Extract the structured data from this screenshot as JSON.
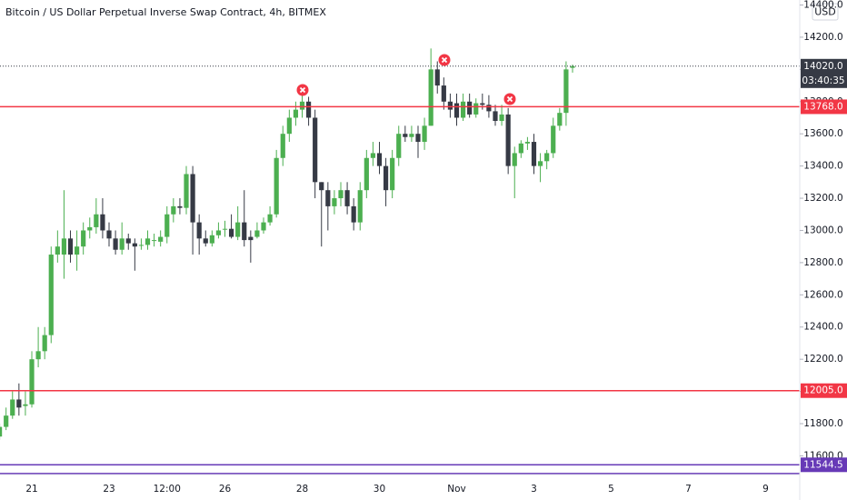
{
  "chart_data": {
    "type": "candlestick",
    "title": "Bitcoin / US Dollar Perpetual Inverse Swap Contract, 4h, BITMEX",
    "currency": "USD",
    "up_color": "#4caf50",
    "down_color": "#363a45",
    "categories": [
      null,
      null,
      null,
      null,
      null,
      "21",
      null,
      null,
      null,
      null,
      null,
      null,
      null,
      null,
      null,
      null,
      null,
      "23",
      null,
      null,
      null,
      null,
      null,
      null,
      null,
      null,
      "12:00",
      null,
      null,
      null,
      null,
      null,
      null,
      null,
      null,
      "26",
      null,
      null,
      null,
      null,
      null,
      null,
      null,
      null,
      null,
      null,
      null,
      "28",
      null,
      null,
      null,
      null,
      null,
      null,
      null,
      null,
      null,
      null,
      null,
      "30",
      null,
      null,
      null,
      null,
      null,
      null,
      null,
      null,
      null,
      null,
      null,
      "Nov",
      null,
      null,
      null,
      null,
      null,
      null,
      null,
      null,
      null,
      null,
      null,
      "3",
      null,
      null,
      null,
      null,
      null,
      null,
      null,
      null,
      null,
      null,
      null,
      "5",
      null,
      null,
      null,
      null,
      null,
      null,
      null,
      null,
      null,
      null,
      null,
      "7",
      null,
      null,
      null,
      null,
      null,
      null,
      null,
      null,
      null,
      null,
      null,
      "9"
    ],
    "open": [
      11720,
      11780,
      11850,
      11950,
      11910,
      11920,
      12200,
      12250,
      12350,
      12850,
      12850,
      12950,
      12850,
      12900,
      13000,
      13020,
      13100,
      13000,
      12950,
      12880,
      12950,
      12920,
      12910,
      12910,
      12940,
      12930,
      12960,
      13100,
      13150,
      13140,
      13350,
      13050,
      12950,
      12920,
      12970,
      13010,
      13010,
      12960,
      13050,
      12960,
      12960,
      13000,
      13050,
      13100,
      13450,
      13600,
      13700,
      13750,
      13800,
      13700,
      13300,
      13250,
      13150,
      13200,
      13250,
      13150,
      13050,
      13250,
      13450,
      13480,
      13400,
      13250,
      13450,
      13600,
      13580,
      13600,
      13550,
      13650,
      14000,
      13900,
      13800,
      13790,
      13700,
      13800,
      13720,
      13790,
      13780,
      13740,
      13680,
      13720,
      13400,
      13480,
      13540,
      13550,
      13400,
      13430,
      13480,
      13650,
      13730,
      14010,
      null,
      null,
      null,
      null,
      null,
      null,
      null,
      null,
      null,
      null,
      null,
      null,
      null,
      null,
      null,
      null,
      null,
      null,
      null,
      null,
      null,
      null,
      null,
      null,
      null,
      null,
      null,
      null,
      null,
      null
    ],
    "high": [
      11800,
      11900,
      12000,
      12050,
      12000,
      12250,
      12400,
      12400,
      12900,
      13000,
      13250,
      13000,
      13000,
      13050,
      13080,
      13200,
      13200,
      13050,
      13000,
      13050,
      12980,
      12950,
      12950,
      13000,
      12980,
      13000,
      13150,
      13200,
      13200,
      13400,
      13400,
      13100,
      13000,
      13000,
      13050,
      13060,
      13100,
      13150,
      13250,
      13000,
      13050,
      13080,
      13150,
      13500,
      13650,
      13750,
      13800,
      13850,
      13830,
      13750,
      13300,
      13300,
      13250,
      13300,
      13300,
      13200,
      13300,
      13500,
      13550,
      13550,
      13450,
      13500,
      13650,
      13650,
      13650,
      13650,
      13700,
      14130,
      14050,
      13950,
      13850,
      13850,
      13850,
      13850,
      13820,
      13850,
      13840,
      13780,
      13780,
      13760,
      13520,
      13560,
      13580,
      13600,
      13480,
      13500,
      13700,
      13760,
      14050,
      14030,
      null,
      null,
      null,
      null,
      null,
      null,
      null,
      null,
      null,
      null,
      null,
      null,
      null,
      null,
      null,
      null,
      null,
      null,
      null,
      null,
      null,
      null,
      null,
      null,
      null,
      null,
      null,
      null,
      null,
      null
    ],
    "low": [
      11700,
      11760,
      11830,
      11850,
      11850,
      11900,
      12150,
      12200,
      12300,
      12800,
      12700,
      12800,
      12750,
      12850,
      12950,
      12980,
      12950,
      12900,
      12850,
      12850,
      12880,
      12750,
      12880,
      12880,
      12900,
      12900,
      12920,
      13050,
      13100,
      13100,
      12850,
      12850,
      12900,
      12900,
      12950,
      12960,
      12950,
      12940,
      12900,
      12800,
      12950,
      12980,
      13030,
      13080,
      13400,
      13550,
      13650,
      13700,
      13650,
      13200,
      12900,
      13000,
      13100,
      13150,
      13100,
      13000,
      13000,
      13200,
      13400,
      13350,
      13150,
      13200,
      13400,
      13550,
      13550,
      13450,
      13500,
      13650,
      13850,
      13750,
      13700,
      13650,
      13680,
      13700,
      13700,
      13750,
      13700,
      13650,
      13650,
      13350,
      13200,
      13450,
      13500,
      13350,
      13300,
      13380,
      13450,
      13620,
      13650,
      13980,
      null,
      null,
      null,
      null,
      null,
      null,
      null,
      null,
      null,
      null,
      null,
      null,
      null,
      null,
      null,
      null,
      null,
      null,
      null,
      null,
      null,
      null,
      null,
      null,
      null,
      null,
      null,
      null,
      null,
      null
    ],
    "close": [
      11780,
      11850,
      11950,
      11900,
      11920,
      12200,
      12250,
      12350,
      12850,
      12900,
      12950,
      12850,
      12900,
      13000,
      13020,
      13100,
      13000,
      12950,
      12880,
      12950,
      12920,
      12900,
      12910,
      12950,
      12940,
      12960,
      13100,
      13150,
      13140,
      13350,
      13050,
      12950,
      12920,
      12970,
      13000,
      13010,
      12960,
      13050,
      12940,
      12940,
      13000,
      13050,
      13100,
      13450,
      13600,
      13700,
      13750,
      13800,
      13700,
      13300,
      13250,
      13150,
      13200,
      13250,
      13150,
      13050,
      13250,
      13450,
      13480,
      13400,
      13250,
      13450,
      13600,
      13580,
      13600,
      13550,
      13650,
      14000,
      13900,
      13800,
      13750,
      13700,
      13800,
      13720,
      13790,
      13780,
      13740,
      13680,
      13720,
      13400,
      13480,
      13540,
      13550,
      13400,
      13430,
      13480,
      13650,
      13730,
      14000,
      14020,
      null,
      null,
      null,
      null,
      null,
      null,
      null,
      null,
      null,
      null,
      null,
      null,
      null,
      null,
      null,
      null,
      null,
      null,
      null,
      null,
      null,
      null,
      null,
      null,
      null,
      null,
      null,
      null,
      null,
      null
    ],
    "ylim": [
      11484,
      14431
    ],
    "yticks": [
      {
        "value": 11600,
        "label": "11600.0"
      },
      {
        "value": 11800,
        "label": "11800.0"
      },
      {
        "value": 12000,
        "label": "12000.0"
      },
      {
        "value": 12200,
        "label": "12200.0"
      },
      {
        "value": 12400,
        "label": "12400.0"
      },
      {
        "value": 12600,
        "label": "12600.0"
      },
      {
        "value": 12800,
        "label": "12800.0"
      },
      {
        "value": 13000,
        "label": "13000.0"
      },
      {
        "value": 13200,
        "label": "13200.0"
      },
      {
        "value": 13400,
        "label": "13400.0"
      },
      {
        "value": 13600,
        "label": "13600.0"
      },
      {
        "value": 13800,
        "label": "13800.0"
      },
      {
        "value": 14000,
        "label": "14000.0"
      },
      {
        "value": 14200,
        "label": "14200.0"
      },
      {
        "value": 14400,
        "label": "14400.0"
      }
    ],
    "price_lines": [
      {
        "value": 13768,
        "label": "13768.0",
        "color": "#f23645"
      },
      {
        "value": 12005,
        "label": "12005.0",
        "color": "#f23645"
      },
      {
        "value": 11544.5,
        "label": "11544.5",
        "color": "#673ab7"
      },
      {
        "value": 11490,
        "color": "#673ab7"
      }
    ],
    "last_price": {
      "value": 14020,
      "label": "14020.0",
      "countdown": "03:40:35"
    }
  }
}
